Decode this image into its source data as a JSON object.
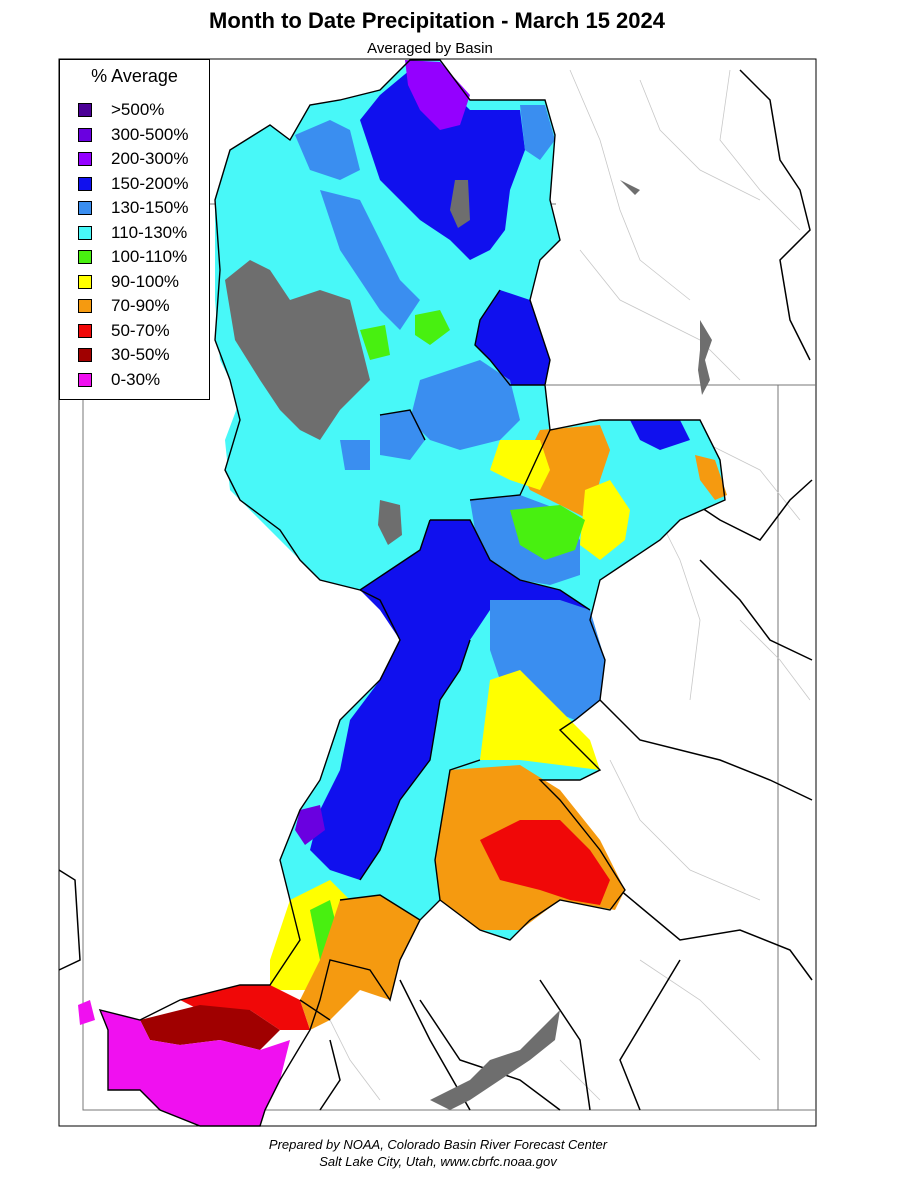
{
  "title": "Month to Date Precipitation - March 15 2024",
  "subtitle": "Averaged by Basin",
  "legend": {
    "title": "% Average",
    "items": [
      {
        "label": ">500%",
        "color": "#4b0096"
      },
      {
        "label": "300-500%",
        "color": "#6a00e0"
      },
      {
        "label": "200-300%",
        "color": "#9400ff"
      },
      {
        "label": "150-200%",
        "color": "#1010ee"
      },
      {
        "label": "130-150%",
        "color": "#3a8ef0"
      },
      {
        "label": "110-130%",
        "color": "#48f8f8"
      },
      {
        "label": "100-110%",
        "color": "#48f010"
      },
      {
        "label": "90-100%",
        "color": "#ffff00"
      },
      {
        "label": "70-90%",
        "color": "#f59a10"
      },
      {
        "label": "50-70%",
        "color": "#f00808"
      },
      {
        "label": "30-50%",
        "color": "#a00000"
      },
      {
        "label": "0-30%",
        "color": "#f010f0"
      }
    ]
  },
  "no_data_color": "#6e6e6e",
  "footer": {
    "line1": "Prepared by NOAA, Colorado Basin River Forecast Center",
    "line2": "Salt Lake City, Utah, www.cbrfc.noaa.gov"
  }
}
